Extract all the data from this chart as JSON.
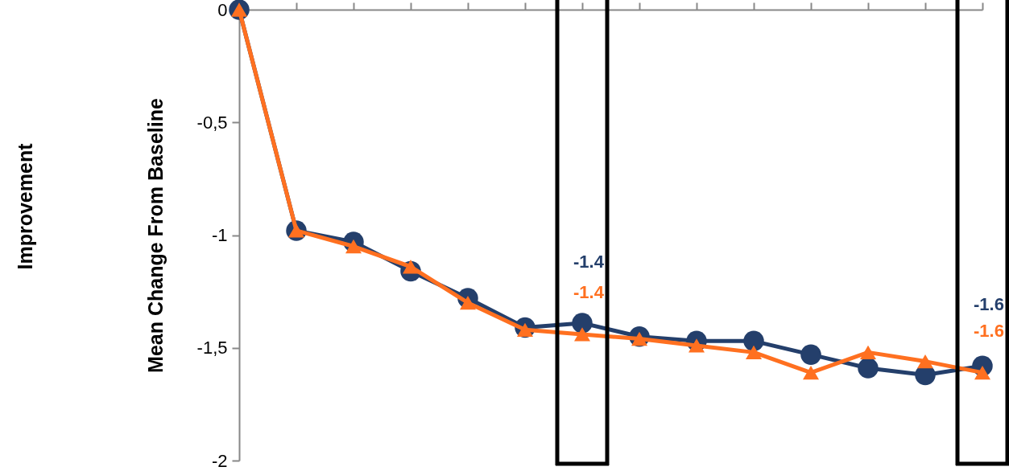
{
  "chart_data": {
    "type": "line",
    "ylabel": "Mean Change From Baseline",
    "annotations": [
      "Improvement"
    ],
    "categories": [
      null,
      null,
      null,
      null,
      null,
      null,
      null,
      null,
      null,
      null,
      null,
      null,
      null,
      null
    ],
    "ylim": [
      -2,
      0
    ],
    "yticks": [
      0,
      {
        "value": -0.5,
        "label": "-0,5"
      },
      -1,
      {
        "value": -1.5,
        "label": "-1,5"
      },
      -2
    ],
    "tick_labels": "y",
    "grid": false,
    "series": [
      {
        "color": "#ff7020",
        "marker": "triangle",
        "values": [
          0,
          -0.98,
          -1.05,
          -1.14,
          -1.3,
          -1.42,
          -1.44,
          -1.46,
          -1.49,
          -1.52,
          -1.61,
          -1.52,
          -1.56,
          -1.61
        ],
        "value_labels": [
          null,
          null,
          null,
          null,
          null,
          null,
          "-1.4",
          null,
          null,
          null,
          null,
          null,
          null,
          "-1.6"
        ]
      },
      {
        "color": "#243f6b",
        "marker": "circle",
        "values": [
          0,
          -0.98,
          -1.03,
          -1.16,
          -1.28,
          -1.41,
          -1.39,
          -1.45,
          -1.47,
          -1.47,
          -1.53,
          -1.59,
          -1.62,
          -1.58
        ],
        "value_labels": [
          null,
          null,
          null,
          null,
          null,
          null,
          "-1.4",
          null,
          null,
          null,
          null,
          null,
          null,
          "-1.6"
        ]
      }
    ]
  }
}
